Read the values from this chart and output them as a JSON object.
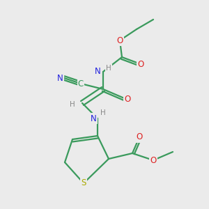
{
  "bg_color": "#ebebeb",
  "bond_color": "#3a9a5c",
  "atom_colors": {
    "N": "#2222dd",
    "O": "#dd2222",
    "S": "#aaaa00",
    "C": "#3a9a5c",
    "H": "#888888"
  },
  "figsize": [
    3.0,
    3.0
  ],
  "dpi": 100
}
